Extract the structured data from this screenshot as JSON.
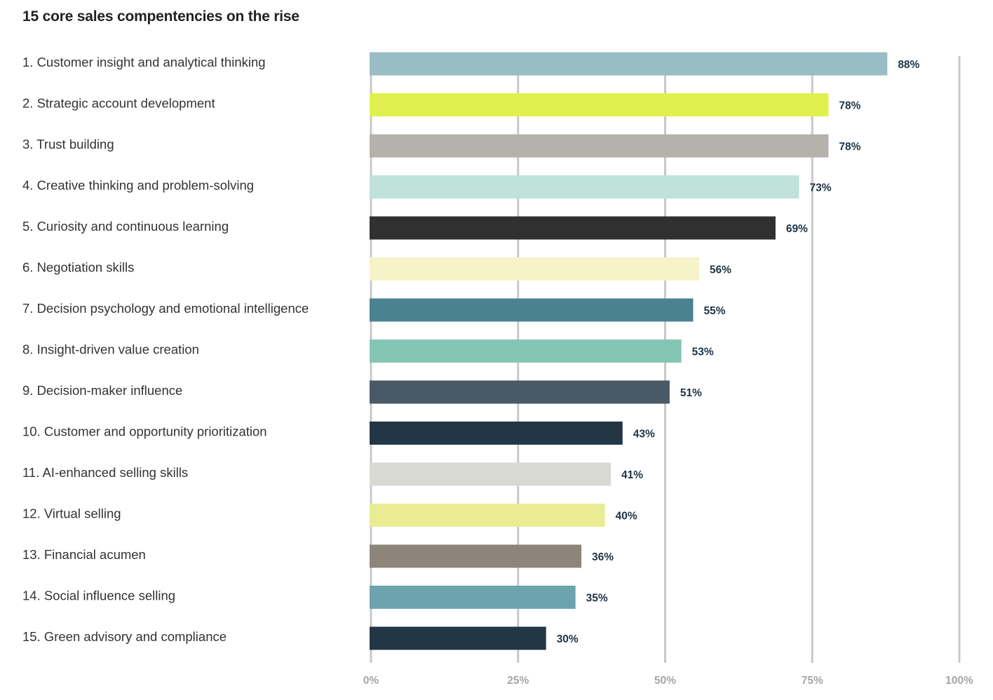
{
  "chart_data": {
    "type": "bar",
    "orientation": "horizontal",
    "title": "15 core sales compentencies on the rise",
    "categories": [
      "1. Customer insight and analytical thinking",
      "2. Strategic account development",
      "3. Trust building",
      "4. Creative thinking and problem-solving",
      "5. Curiosity and continuous learning",
      "6. Negotiation skills",
      "7. Decision psychology and emotional intelligence",
      "8. Insight-driven value creation",
      "9. Decision-maker influence",
      "10. Customer and opportunity prioritization",
      "11. AI-enhanced selling skills",
      "12. Virtual selling",
      "13. Financial acumen",
      "14. Social influence selling",
      "15. Green advisory and compliance"
    ],
    "values": [
      88,
      78,
      78,
      73,
      69,
      56,
      55,
      53,
      51,
      43,
      41,
      40,
      36,
      35,
      30
    ],
    "value_labels": [
      "88%",
      "78%",
      "78%",
      "73%",
      "69%",
      "56%",
      "55%",
      "53%",
      "51%",
      "43%",
      "41%",
      "40%",
      "36%",
      "35%",
      "30%"
    ],
    "colors": [
      "#99bdc5",
      "#e0f04e",
      "#b5b2ab",
      "#bfe2db",
      "#303030",
      "#f6f3c9",
      "#4a8290",
      "#84c6b3",
      "#4a5966",
      "#223646",
      "#d9d9d4",
      "#eaec94",
      "#8e857a",
      "#6da3ae",
      "#223646"
    ],
    "xlim": [
      0,
      100
    ],
    "xticks": [
      0,
      25,
      50,
      75,
      100
    ],
    "xtick_labels": [
      "0%",
      "25%",
      "50%",
      "75%",
      "100%"
    ],
    "grid": true,
    "legend": "none"
  }
}
